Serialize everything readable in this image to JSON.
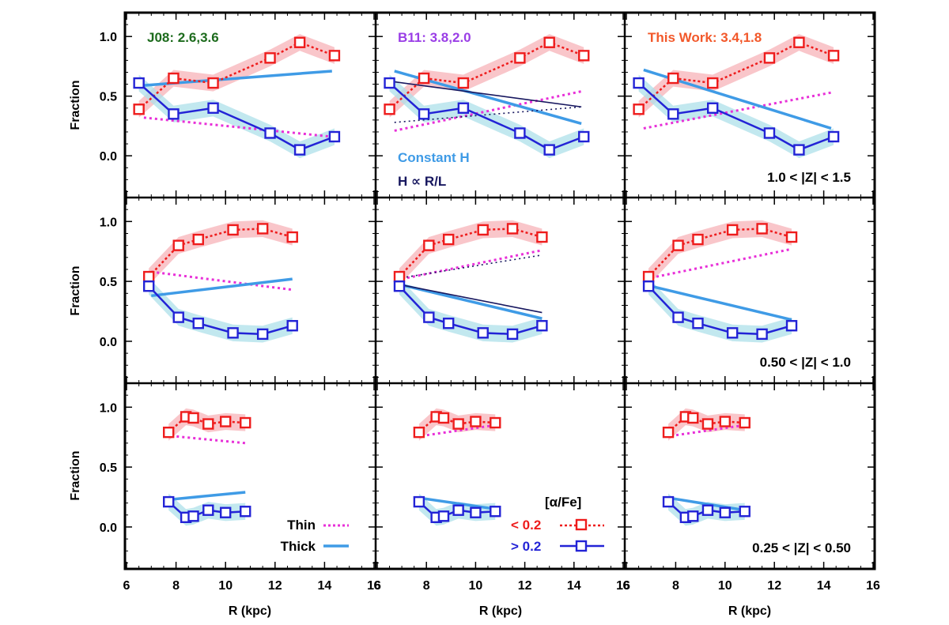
{
  "figure": {
    "ylabel": "Fraction",
    "xlabel": "R (kpc)",
    "colors": {
      "lowAlpha": "#ee1c1c",
      "lowAlphaBand": "#f7b3b8",
      "highAlpha": "#2323d6",
      "highAlphaBand": "#aee0ea",
      "thin": "#e830d8",
      "thick": "#3f9be6",
      "thickRL": "#17175f",
      "j08": "#1d6b1d",
      "b11": "#9a3ee6",
      "thiswork": "#f2582a"
    },
    "model_labels": [
      "J08: 2.6,3.6",
      "B11: 3.8,2.0",
      "This Work: 3.4,1.8"
    ],
    "z_labels": [
      "1.0 < |Z| < 1.5",
      "0.50 < |Z| < 1.0",
      "0.25 < |Z| < 0.50"
    ],
    "legend": {
      "constant_h": "Constant H",
      "h_rl": "H ∝ R/L",
      "thin": "Thin",
      "thick": "Thick",
      "alpha_title": "[α/Fe]",
      "low": "< 0.2",
      "high": "> 0.2"
    }
  },
  "chart_data": [
    {
      "type": "line",
      "panel": "top-left",
      "title": "J08: 2.6,3.6",
      "annotation": "",
      "xlim": [
        6,
        16
      ],
      "ylim": [
        -0.35,
        1.2
      ],
      "xticks": [
        6,
        8,
        10,
        12,
        14,
        16
      ],
      "yticks": [
        0.0,
        0.5,
        1.0
      ],
      "series": [
        {
          "name": "< 0.2",
          "x": [
            6.5,
            7.9,
            9.5,
            11.8,
            13.0,
            14.4
          ],
          "y": [
            0.39,
            0.65,
            0.61,
            0.82,
            0.95,
            0.84
          ]
        },
        {
          "name": "> 0.2",
          "x": [
            6.5,
            7.9,
            9.5,
            11.8,
            13.0,
            14.4
          ],
          "y": [
            0.61,
            0.35,
            0.4,
            0.19,
            0.05,
            0.16
          ]
        },
        {
          "name": "Thin",
          "x": [
            6.7,
            14.3
          ],
          "y": [
            0.32,
            0.16
          ]
        },
        {
          "name": "Thick",
          "x": [
            6.7,
            14.3
          ],
          "y": [
            0.59,
            0.71
          ]
        }
      ]
    },
    {
      "type": "line",
      "panel": "top-middle",
      "title": "B11: 3.8,2.0",
      "annotation": "",
      "xlim": [
        6,
        16
      ],
      "ylim": [
        -0.35,
        1.2
      ],
      "xticks": [
        6,
        8,
        10,
        12,
        14,
        16
      ],
      "yticks": [
        0.0,
        0.5,
        1.0
      ],
      "series": [
        {
          "name": "< 0.2",
          "x": [
            6.5,
            7.9,
            9.5,
            11.8,
            13.0,
            14.4
          ],
          "y": [
            0.39,
            0.65,
            0.61,
            0.82,
            0.95,
            0.84
          ]
        },
        {
          "name": "> 0.2",
          "x": [
            6.5,
            7.9,
            9.5,
            11.8,
            13.0,
            14.4
          ],
          "y": [
            0.61,
            0.35,
            0.4,
            0.19,
            0.05,
            0.16
          ]
        },
        {
          "name": "Thin",
          "x": [
            6.7,
            14.3
          ],
          "y": [
            0.21,
            0.54
          ]
        },
        {
          "name": "Constant H",
          "x": [
            6.7,
            14.3
          ],
          "y": [
            0.71,
            0.27
          ]
        },
        {
          "name": "H ∝ R/L",
          "x": [
            6.7,
            14.3
          ],
          "y": [
            0.62,
            0.41
          ]
        },
        {
          "name": "",
          "x": [
            6.7,
            14.3
          ],
          "y": [
            0.28,
            0.41
          ]
        }
      ]
    },
    {
      "type": "line",
      "panel": "top-right",
      "title": "This Work: 3.4,1.8",
      "annotation": "1.0 < |Z| < 1.5",
      "xlim": [
        6,
        16
      ],
      "ylim": [
        -0.35,
        1.2
      ],
      "xticks": [
        6,
        8,
        10,
        12,
        14,
        16
      ],
      "yticks": [
        0.0,
        0.5,
        1.0
      ],
      "series": [
        {
          "name": "< 0.2",
          "x": [
            6.5,
            7.9,
            9.5,
            11.8,
            13.0,
            14.4
          ],
          "y": [
            0.39,
            0.65,
            0.61,
            0.82,
            0.95,
            0.84
          ]
        },
        {
          "name": "> 0.2",
          "x": [
            6.5,
            7.9,
            9.5,
            11.8,
            13.0,
            14.4
          ],
          "y": [
            0.61,
            0.35,
            0.4,
            0.19,
            0.05,
            0.16
          ]
        },
        {
          "name": "Thin",
          "x": [
            6.7,
            14.3
          ],
          "y": [
            0.23,
            0.53
          ]
        },
        {
          "name": "Thick",
          "x": [
            6.7,
            14.3
          ],
          "y": [
            0.72,
            0.23
          ]
        }
      ]
    },
    {
      "type": "line",
      "panel": "middle-left",
      "title": "",
      "annotation": "",
      "xlim": [
        6,
        16
      ],
      "ylim": [
        -0.35,
        1.2
      ],
      "xticks": [
        6,
        8,
        10,
        12,
        14,
        16
      ],
      "yticks": [
        0.0,
        0.5,
        1.0
      ],
      "series": [
        {
          "name": "< 0.2",
          "x": [
            6.9,
            8.1,
            8.9,
            10.3,
            11.5,
            12.7
          ],
          "y": [
            0.54,
            0.8,
            0.85,
            0.93,
            0.94,
            0.87
          ]
        },
        {
          "name": "> 0.2",
          "x": [
            6.9,
            8.1,
            8.9,
            10.3,
            11.5,
            12.7
          ],
          "y": [
            0.46,
            0.2,
            0.15,
            0.07,
            0.06,
            0.13
          ]
        },
        {
          "name": "Thin",
          "x": [
            7.0,
            12.7
          ],
          "y": [
            0.58,
            0.43
          ]
        },
        {
          "name": "Thick",
          "x": [
            7.0,
            12.7
          ],
          "y": [
            0.38,
            0.52
          ]
        }
      ]
    },
    {
      "type": "line",
      "panel": "middle-middle",
      "title": "",
      "annotation": "",
      "xlim": [
        6,
        16
      ],
      "ylim": [
        -0.35,
        1.2
      ],
      "xticks": [
        6,
        8,
        10,
        12,
        14,
        16
      ],
      "yticks": [
        0.0,
        0.5,
        1.0
      ],
      "series": [
        {
          "name": "< 0.2",
          "x": [
            6.9,
            8.1,
            8.9,
            10.3,
            11.5,
            12.7
          ],
          "y": [
            0.54,
            0.8,
            0.85,
            0.93,
            0.94,
            0.87
          ]
        },
        {
          "name": "> 0.2",
          "x": [
            6.9,
            8.1,
            8.9,
            10.3,
            11.5,
            12.7
          ],
          "y": [
            0.46,
            0.2,
            0.15,
            0.07,
            0.06,
            0.13
          ]
        },
        {
          "name": "Thin",
          "x": [
            7.0,
            12.7
          ],
          "y": [
            0.52,
            0.76
          ]
        },
        {
          "name": "Constant H",
          "x": [
            7.0,
            12.7
          ],
          "y": [
            0.47,
            0.19
          ]
        },
        {
          "name": "H ∝ R/L",
          "x": [
            7.0,
            12.7
          ],
          "y": [
            0.47,
            0.24
          ]
        },
        {
          "name": "",
          "x": [
            7.0,
            12.7
          ],
          "y": [
            0.53,
            0.72
          ]
        }
      ]
    },
    {
      "type": "line",
      "panel": "middle-right",
      "title": "",
      "annotation": "0.50 < |Z| < 1.0",
      "xlim": [
        6,
        16
      ],
      "ylim": [
        -0.35,
        1.2
      ],
      "xticks": [
        6,
        8,
        10,
        12,
        14,
        16
      ],
      "yticks": [
        0.0,
        0.5,
        1.0
      ],
      "series": [
        {
          "name": "< 0.2",
          "x": [
            6.9,
            8.1,
            8.9,
            10.3,
            11.5,
            12.7
          ],
          "y": [
            0.54,
            0.8,
            0.85,
            0.93,
            0.94,
            0.87
          ]
        },
        {
          "name": "> 0.2",
          "x": [
            6.9,
            8.1,
            8.9,
            10.3,
            11.5,
            12.7
          ],
          "y": [
            0.46,
            0.2,
            0.15,
            0.07,
            0.06,
            0.13
          ]
        },
        {
          "name": "Thin",
          "x": [
            7.0,
            12.7
          ],
          "y": [
            0.53,
            0.77
          ]
        },
        {
          "name": "Thick",
          "x": [
            7.0,
            12.7
          ],
          "y": [
            0.46,
            0.18
          ]
        }
      ]
    },
    {
      "type": "line",
      "panel": "bottom-left",
      "title": "",
      "annotation": "",
      "xlim": [
        6,
        16
      ],
      "ylim": [
        -0.35,
        1.2
      ],
      "xticks": [
        6,
        8,
        10,
        12,
        14,
        16
      ],
      "yticks": [
        0.0,
        0.5,
        1.0
      ],
      "series": [
        {
          "name": "< 0.2",
          "x": [
            7.7,
            8.4,
            8.7,
            9.3,
            10.0,
            10.8
          ],
          "y": [
            0.79,
            0.92,
            0.91,
            0.86,
            0.88,
            0.87
          ]
        },
        {
          "name": "> 0.2",
          "x": [
            7.7,
            8.4,
            8.7,
            9.3,
            10.0,
            10.8
          ],
          "y": [
            0.21,
            0.08,
            0.09,
            0.14,
            0.12,
            0.13
          ]
        },
        {
          "name": "Thin",
          "x": [
            7.8,
            10.8
          ],
          "y": [
            0.76,
            0.7
          ]
        },
        {
          "name": "Thick",
          "x": [
            7.8,
            10.8
          ],
          "y": [
            0.23,
            0.29
          ]
        }
      ]
    },
    {
      "type": "line",
      "panel": "bottom-middle",
      "title": "",
      "annotation": "",
      "xlim": [
        6,
        16
      ],
      "ylim": [
        -0.35,
        1.2
      ],
      "xticks": [
        6,
        8,
        10,
        12,
        14,
        16
      ],
      "yticks": [
        0.0,
        0.5,
        1.0
      ],
      "series": [
        {
          "name": "< 0.2",
          "x": [
            7.7,
            8.4,
            8.7,
            9.3,
            10.0,
            10.8
          ],
          "y": [
            0.79,
            0.92,
            0.91,
            0.86,
            0.88,
            0.87
          ]
        },
        {
          "name": "> 0.2",
          "x": [
            7.7,
            8.4,
            8.7,
            9.3,
            10.0,
            10.8
          ],
          "y": [
            0.21,
            0.08,
            0.09,
            0.14,
            0.12,
            0.13
          ]
        },
        {
          "name": "Thin",
          "x": [
            7.8,
            10.8
          ],
          "y": [
            0.76,
            0.85
          ]
        },
        {
          "name": "Constant H",
          "x": [
            7.8,
            10.8
          ],
          "y": [
            0.24,
            0.15
          ]
        }
      ]
    },
    {
      "type": "line",
      "panel": "bottom-right",
      "title": "",
      "annotation": "0.25 < |Z| < 0.50",
      "xlim": [
        6,
        16
      ],
      "ylim": [
        -0.35,
        1.2
      ],
      "xticks": [
        6,
        8,
        10,
        12,
        14,
        16
      ],
      "yticks": [
        0.0,
        0.5,
        1.0
      ],
      "series": [
        {
          "name": "< 0.2",
          "x": [
            7.7,
            8.4,
            8.7,
            9.3,
            10.0,
            10.8
          ],
          "y": [
            0.79,
            0.92,
            0.91,
            0.86,
            0.88,
            0.87
          ]
        },
        {
          "name": "> 0.2",
          "x": [
            7.7,
            8.4,
            8.7,
            9.3,
            10.0,
            10.8
          ],
          "y": [
            0.21,
            0.08,
            0.09,
            0.14,
            0.12,
            0.13
          ]
        },
        {
          "name": "Thin",
          "x": [
            7.8,
            10.8
          ],
          "y": [
            0.76,
            0.85
          ]
        },
        {
          "name": "Thick",
          "x": [
            7.8,
            10.8
          ],
          "y": [
            0.24,
            0.14
          ]
        }
      ]
    }
  ]
}
